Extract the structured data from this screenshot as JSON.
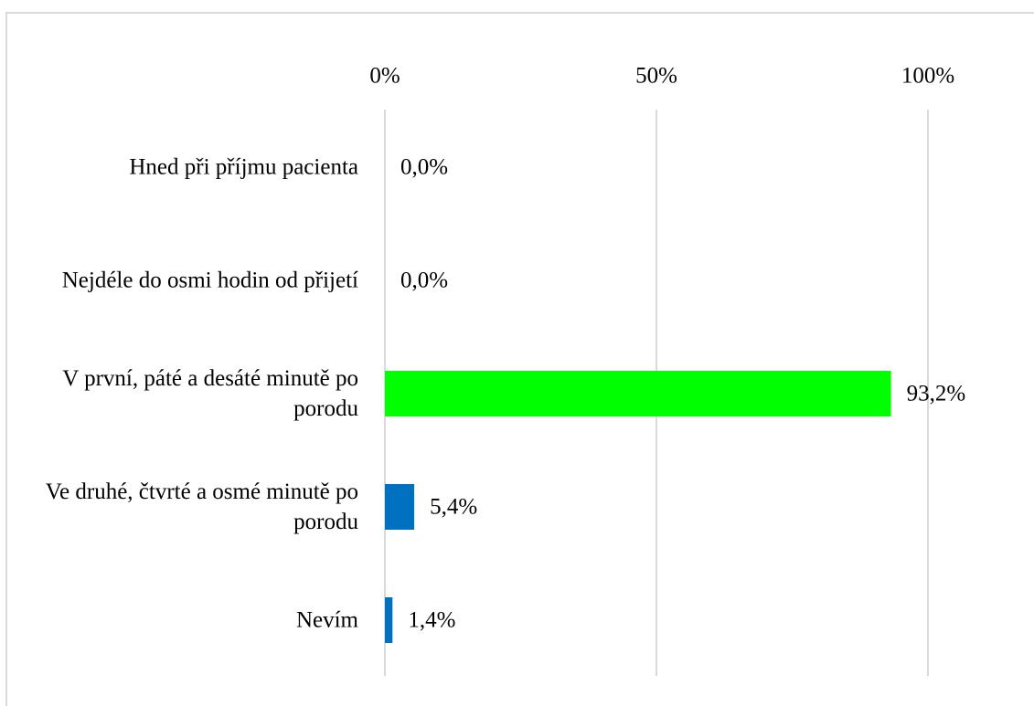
{
  "chart_data": {
    "type": "barh",
    "categories": [
      "Hned při příjmu pacienta",
      "Nejdéle do osmi hodin od přijetí",
      "V první, páté a desáté minutě po porodu",
      "Ve druhé, čtvrté a osmé minutě po porodu",
      "Nevím"
    ],
    "values": [
      0.0,
      0.0,
      93.2,
      5.4,
      1.4
    ],
    "value_labels": [
      "0,0%",
      "0,0%",
      "93,2%",
      "5,4%",
      "1,4%"
    ],
    "colors": [
      "#0070c0",
      "#0070c0",
      "#00ff00",
      "#0070c0",
      "#0070c0"
    ],
    "xlim": [
      0,
      100
    ],
    "xticks": [
      {
        "value": 0,
        "label": "0%"
      },
      {
        "value": 50,
        "label": "50%"
      },
      {
        "value": 100,
        "label": "100%"
      }
    ],
    "grid": true
  }
}
